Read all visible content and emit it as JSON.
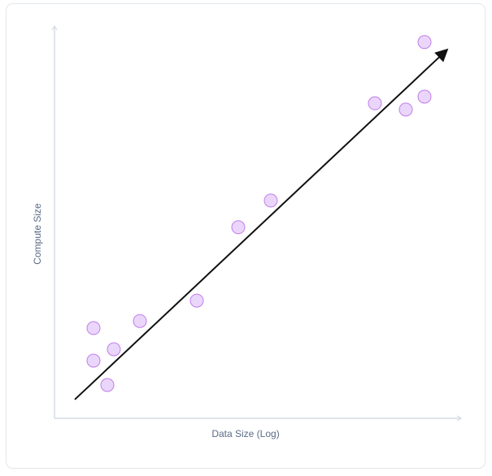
{
  "chart_data": {
    "type": "scatter",
    "x_label": "Data Size (Log)",
    "y_label": "Compute Size",
    "xlim": [
      0,
      100
    ],
    "ylim": [
      0,
      100
    ],
    "x": [
      9.6,
      9.6,
      13,
      14.6,
      21,
      35,
      45.2,
      53.2,
      78.8,
      86.4,
      91,
      91
    ],
    "values": [
      23.0,
      14.7,
      8.5,
      17.6,
      24.8,
      30.0,
      48.7,
      55.5,
      80.3,
      78.7,
      82.0,
      95.9
    ],
    "color": "#ead6fb",
    "edgecolor": "#c17de9",
    "trend_line": {
      "x": [
        5,
        96.4
      ],
      "values": [
        4.8,
        93.8
      ],
      "color": "#111111"
    }
  }
}
